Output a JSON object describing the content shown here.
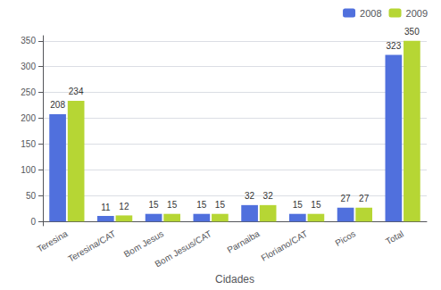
{
  "chart_data": {
    "type": "bar",
    "categories": [
      "Teresina",
      "Teresina/CAT",
      "Bom Jesus",
      "Bom Jesus/CAT",
      "Parnaiba",
      "Floriano/CAT",
      "Picos",
      "Total"
    ],
    "series": [
      {
        "name": "2008",
        "values": [
          208,
          11,
          15,
          15,
          32,
          15,
          27,
          323
        ]
      },
      {
        "name": "2009",
        "values": [
          234,
          12,
          15,
          15,
          32,
          15,
          27,
          350
        ]
      }
    ],
    "xlabel": "Cidades",
    "ylim": [
      -8,
      360
    ],
    "yticks": [
      0,
      50,
      100,
      150,
      200,
      250,
      300,
      350
    ],
    "grid": true,
    "legend": "upper right",
    "data_labels": true
  }
}
